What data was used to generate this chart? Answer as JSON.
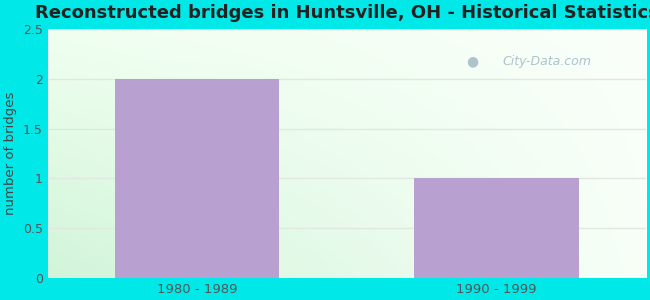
{
  "categories": [
    "1980 - 1989",
    "1990 - 1999"
  ],
  "values": [
    2,
    1
  ],
  "bar_color": "#b8a0d0",
  "title": "Reconstructed bridges in Huntsville, OH - Historical Statistics",
  "ylabel": "number of bridges",
  "ylim": [
    0,
    2.5
  ],
  "yticks": [
    0,
    0.5,
    1,
    1.5,
    2,
    2.5
  ],
  "title_fontsize": 13,
  "ylabel_color": "#444444",
  "tick_color": "#555555",
  "background_outer": "#00e8e8",
  "watermark_text": "City-Data.com",
  "watermark_color": "#a0b8c8",
  "grid_color": "#e0e8e0",
  "bar_width": 0.55,
  "title_color": "#222222"
}
